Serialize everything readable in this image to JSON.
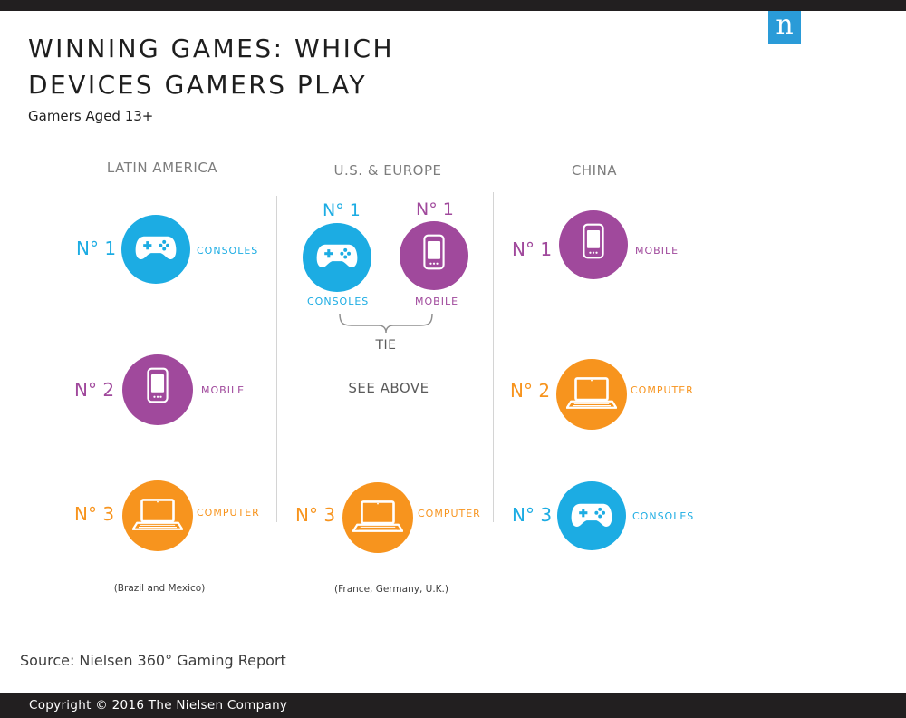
{
  "header": {
    "logo_letter": "n",
    "title_line1": "WINNING GAMES: WHICH",
    "title_line2": "DEVICES GAMERS PLAY",
    "subtitle": "Gamers Aged 13+"
  },
  "colors": {
    "consoles": "#1cace3",
    "mobile": "#a0499c",
    "computer": "#f7941e",
    "brand": "#2a9bd8",
    "dark_bar": "#221f20"
  },
  "regions": {
    "latin_america": {
      "name": "LATIN AMERICA",
      "note": "(Brazil and Mexico)",
      "rank1": {
        "rank": "N° 1",
        "device": "CONSOLES",
        "icon": "gamepad-icon"
      },
      "rank2": {
        "rank": "N° 2",
        "device": "MOBILE",
        "icon": "phone-icon"
      },
      "rank3": {
        "rank": "N° 3",
        "device": "COMPUTER",
        "icon": "laptop-icon"
      }
    },
    "us_europe": {
      "name": "U.S. & EUROPE",
      "note": "(France, Germany, U.K.)",
      "rank1a": {
        "rank": "N° 1",
        "device": "CONSOLES",
        "icon": "gamepad-icon"
      },
      "rank1b": {
        "rank": "N° 1",
        "device": "MOBILE",
        "icon": "phone-icon"
      },
      "tie_label": "TIE",
      "rank2_text": "SEE ABOVE",
      "rank3": {
        "rank": "N° 3",
        "device": "COMPUTER",
        "icon": "laptop-icon"
      }
    },
    "china": {
      "name": "CHINA",
      "rank1": {
        "rank": "N° 1",
        "device": "MOBILE",
        "icon": "phone-icon"
      },
      "rank2": {
        "rank": "N° 2",
        "device": "COMPUTER",
        "icon": "laptop-icon"
      },
      "rank3": {
        "rank": "N° 3",
        "device": "CONSOLES",
        "icon": "gamepad-icon"
      }
    }
  },
  "footer": {
    "source": "Source: Nielsen 360° Gaming Report",
    "copyright": "Copyright © 2016 The Nielsen Company"
  }
}
